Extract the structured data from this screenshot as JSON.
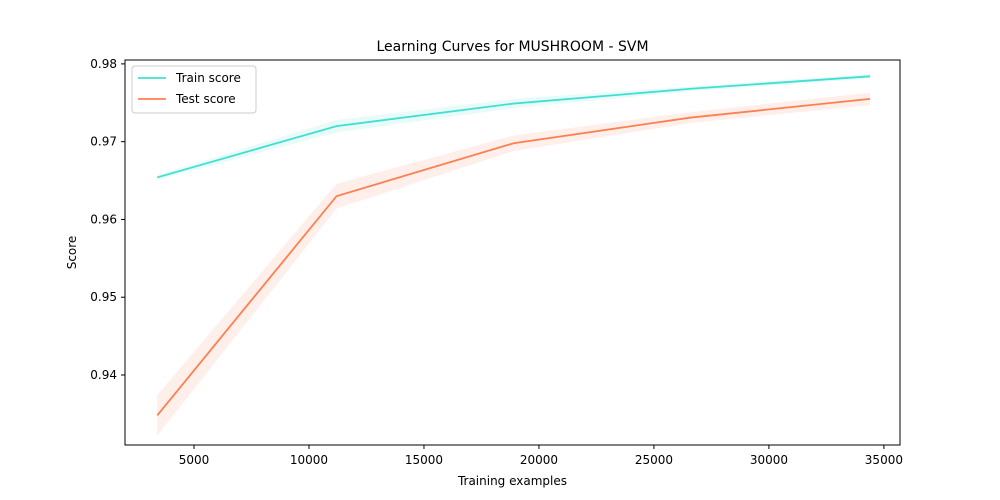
{
  "chart_data": {
    "type": "line",
    "title": "Learning Curves for MUSHROOM - SVM",
    "xlabel": "Training examples",
    "ylabel": "Score",
    "xlim": [
      2000,
      35700
    ],
    "ylim": [
      0.931,
      0.9805
    ],
    "xticks": [
      5000,
      10000,
      15000,
      20000,
      25000,
      30000,
      35000
    ],
    "yticks": [
      0.94,
      0.95,
      0.96,
      0.97,
      0.98
    ],
    "xtick_labels": [
      "5000",
      "10000",
      "15000",
      "20000",
      "25000",
      "30000",
      "35000"
    ],
    "ytick_labels": [
      "0.94",
      "0.95",
      "0.96",
      "0.97",
      "0.98"
    ],
    "grid": false,
    "legend_position": "top-left",
    "series": [
      {
        "name": "Train score",
        "color": "#40e0d0",
        "x": [
          3400,
          11200,
          18900,
          26600,
          34400
        ],
        "values": [
          0.9654,
          0.972,
          0.9749,
          0.9768,
          0.9784
        ],
        "lower": [
          0.9651,
          0.9712,
          0.9743,
          0.9765,
          0.9781
        ],
        "upper": [
          0.9657,
          0.9728,
          0.9755,
          0.9771,
          0.9787
        ]
      },
      {
        "name": "Test score",
        "color": "#ff7f50",
        "x": [
          3400,
          11200,
          18900,
          26600,
          34400
        ],
        "values": [
          0.9348,
          0.963,
          0.9698,
          0.9731,
          0.9755
        ],
        "lower": [
          0.9322,
          0.9614,
          0.9688,
          0.9724,
          0.9747
        ],
        "upper": [
          0.9374,
          0.9646,
          0.9708,
          0.9738,
          0.9763
        ]
      }
    ]
  }
}
